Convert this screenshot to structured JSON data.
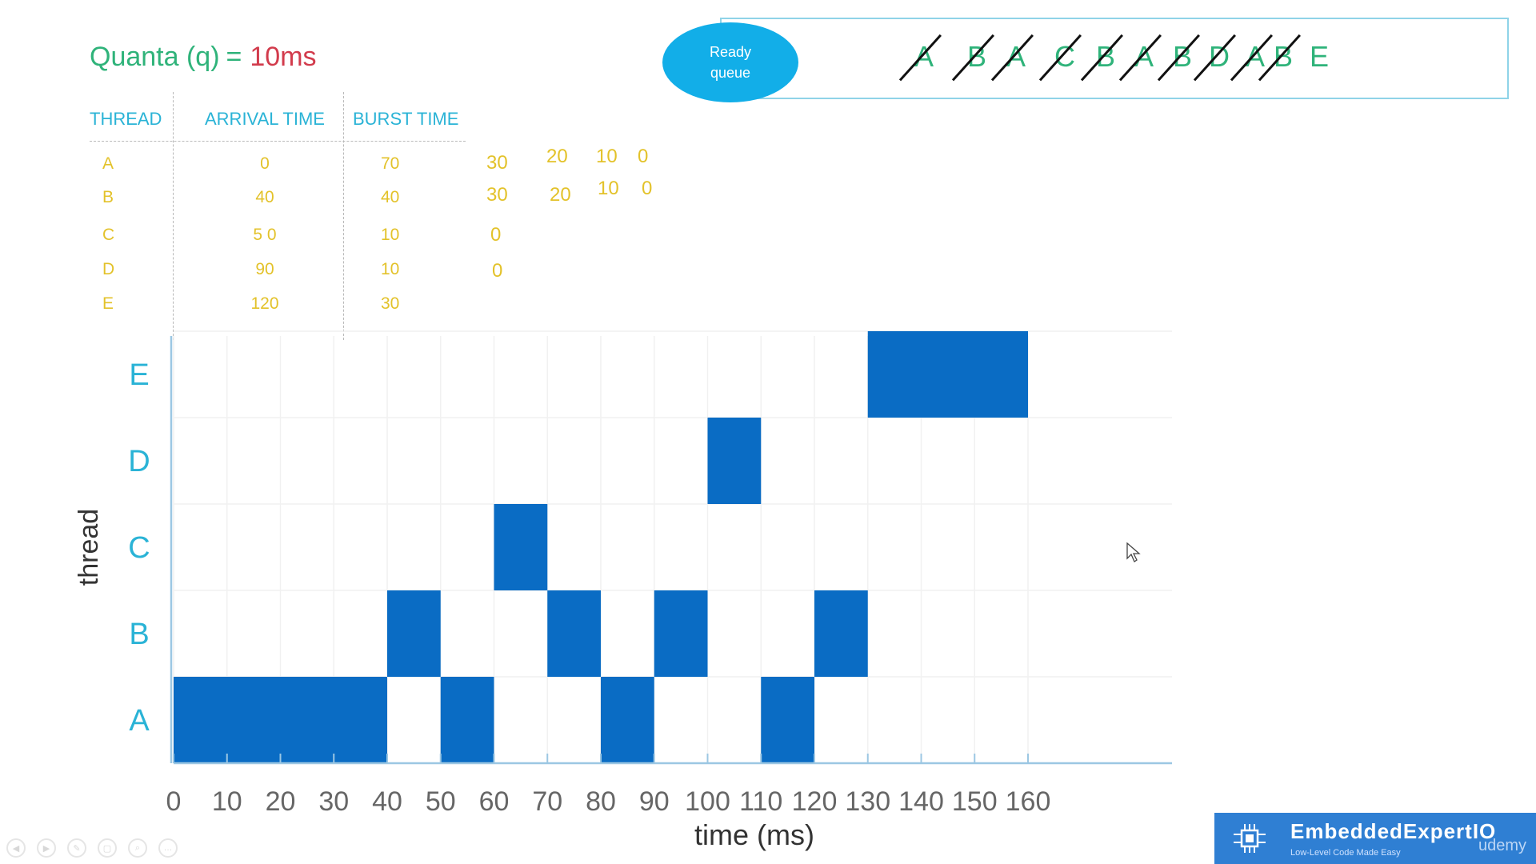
{
  "quanta": {
    "label": "Quanta (q)",
    "equals": "=",
    "value": "10ms"
  },
  "ready_queue": {
    "label_line1": "Ready",
    "label_line2": "queue",
    "items": [
      "A",
      "B",
      "A",
      "C",
      "B",
      "A",
      "B",
      "D",
      "A",
      "B",
      "E"
    ],
    "crossed_out": [
      true,
      true,
      true,
      true,
      true,
      true,
      true,
      true,
      true,
      true,
      false
    ]
  },
  "table": {
    "headers": [
      "THREAD",
      "ARRIVAL TIME",
      "BURST TIME"
    ],
    "rows": [
      {
        "thread": "A",
        "arrival": "0",
        "burst": "70",
        "remaining": [
          "30",
          "20",
          "10",
          "0"
        ]
      },
      {
        "thread": "B",
        "arrival": "40",
        "burst": "40",
        "remaining": [
          "30",
          "20",
          "10",
          "0"
        ]
      },
      {
        "thread": "C",
        "arrival": "5 0",
        "burst": "10",
        "remaining": [
          "0"
        ]
      },
      {
        "thread": "D",
        "arrival": "90",
        "burst": "10",
        "remaining": [
          "0"
        ]
      },
      {
        "thread": "E",
        "arrival": "120",
        "burst": "30",
        "remaining": []
      }
    ]
  },
  "chart_data": {
    "type": "bar",
    "subtype": "gantt",
    "xlabel": "time (ms)",
    "ylabel": "thread",
    "x_ticks": [
      0,
      10,
      20,
      30,
      40,
      50,
      60,
      70,
      80,
      90,
      100,
      110,
      120,
      130,
      140,
      150,
      160
    ],
    "xlim": [
      0,
      160
    ],
    "categories": [
      "A",
      "B",
      "C",
      "D",
      "E"
    ],
    "segments": [
      {
        "thread": "A",
        "start": 0,
        "end": 40
      },
      {
        "thread": "B",
        "start": 40,
        "end": 50
      },
      {
        "thread": "A",
        "start": 50,
        "end": 60
      },
      {
        "thread": "C",
        "start": 60,
        "end": 70
      },
      {
        "thread": "B",
        "start": 70,
        "end": 80
      },
      {
        "thread": "A",
        "start": 80,
        "end": 90
      },
      {
        "thread": "B",
        "start": 90,
        "end": 100
      },
      {
        "thread": "D",
        "start": 100,
        "end": 110
      },
      {
        "thread": "A",
        "start": 110,
        "end": 120
      },
      {
        "thread": "B",
        "start": 120,
        "end": 130
      },
      {
        "thread": "E",
        "start": 130,
        "end": 160
      }
    ],
    "bar_color": "#0a6cc4",
    "grid": true
  },
  "colors": {
    "teal_heading": "#2ab3d6",
    "green": "#2fb37a",
    "red": "#d23b4c",
    "yellow": "#e3c22a",
    "oval": "#12aee8"
  },
  "brand": {
    "title": "EmbeddedExpertIO",
    "tagline": "Low-Level Code Made Easy",
    "platform": "udemy"
  },
  "player_controls": [
    "prev-icon",
    "play-icon",
    "pen-icon",
    "copy-icon",
    "zoom-icon",
    "more-icon"
  ]
}
